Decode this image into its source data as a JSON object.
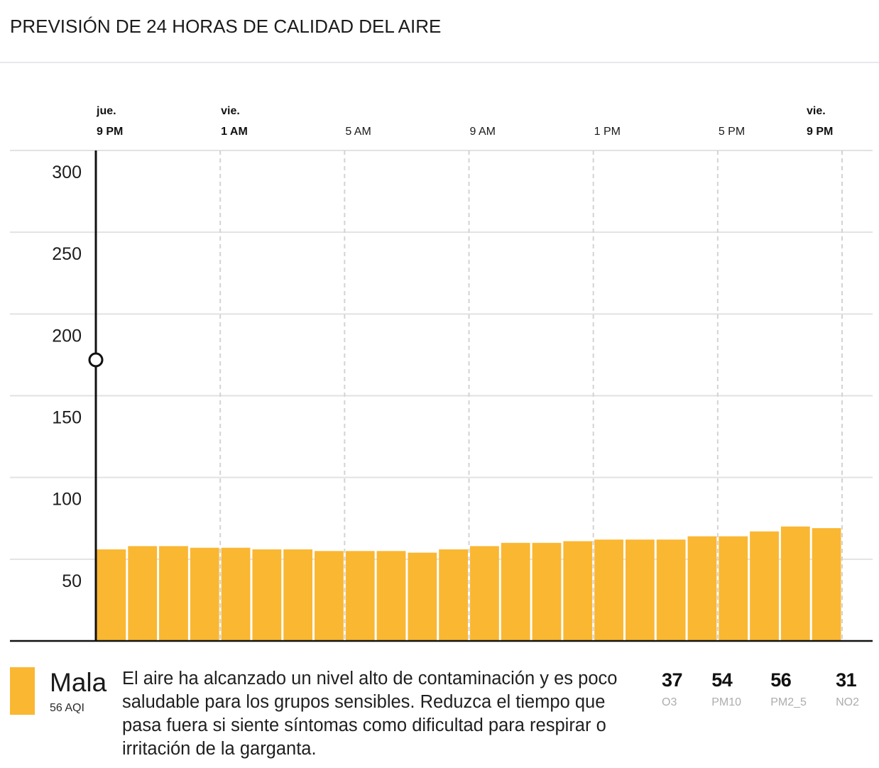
{
  "chart_data": {
    "type": "bar",
    "title": "PREVISIÓN DE 24 HORAS DE CALIDAD DEL AIRE",
    "x_ticks": [
      {
        "day": "jue.",
        "label": "9 PM"
      },
      {
        "day": "vie.",
        "label": "1 AM"
      },
      {
        "label": "5 AM"
      },
      {
        "label": "9 AM"
      },
      {
        "label": "1 PM"
      },
      {
        "label": "5 PM"
      },
      {
        "day": "vie.",
        "label": "9 PM"
      }
    ],
    "values": [
      56,
      58,
      58,
      57,
      57,
      56,
      56,
      55,
      55,
      55,
      54,
      56,
      58,
      60,
      60,
      61,
      62,
      62,
      62,
      64,
      64,
      67,
      70,
      69
    ],
    "y_ticks": [
      300,
      250,
      200,
      150,
      100,
      50
    ],
    "ylim": [
      0,
      300
    ],
    "grid": true,
    "bar_color": "#FAB732"
  },
  "summary": {
    "level": "Mala",
    "aqi": "56 AQI",
    "description": "El aire ha alcanzado un nivel alto de contaminación y es poco saludable para los grupos sensibles. Reduzca el tiempo que pasa fuera si siente síntomas como dificultad para respirar o irritación de la garganta.",
    "level_color": "#FAB732"
  },
  "pollutants": [
    {
      "value": "37",
      "name": "O3"
    },
    {
      "value": "54",
      "name": "PM10"
    },
    {
      "value": "56",
      "name": "PM2_5"
    },
    {
      "value": "31",
      "name": "NO2"
    }
  ]
}
